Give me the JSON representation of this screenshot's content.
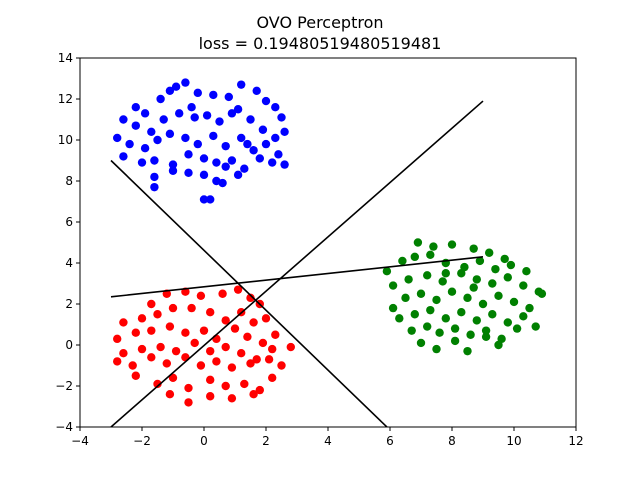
{
  "chart_data": {
    "type": "scatter",
    "title": "OVO Perceptron",
    "subtitle": "loss = 0.19480519480519481",
    "xlabel": "",
    "ylabel": "",
    "xlim": [
      -4,
      12
    ],
    "ylim": [
      -4,
      14
    ],
    "xticks": [
      "−4",
      "−2",
      "0",
      "2",
      "4",
      "6",
      "8",
      "10",
      "12"
    ],
    "yticks": [
      "−4",
      "−2",
      "0",
      "2",
      "4",
      "6",
      "8",
      "10",
      "12",
      "14"
    ],
    "grid": false,
    "series": [
      {
        "color": "#0000ff",
        "points": [
          [
            -2.2,
            11.6
          ],
          [
            -1.9,
            11.3
          ],
          [
            -1.4,
            12.0
          ],
          [
            -1.1,
            12.4
          ],
          [
            -0.9,
            12.6
          ],
          [
            -0.6,
            12.8
          ],
          [
            -0.2,
            12.3
          ],
          [
            0.3,
            12.2
          ],
          [
            0.8,
            12.1
          ],
          [
            1.2,
            12.7
          ],
          [
            1.7,
            12.4
          ],
          [
            2.0,
            11.9
          ],
          [
            2.3,
            11.6
          ],
          [
            2.5,
            11.1
          ],
          [
            -2.6,
            11.0
          ],
          [
            -2.2,
            10.7
          ],
          [
            -1.7,
            10.4
          ],
          [
            -1.3,
            11.0
          ],
          [
            -0.8,
            11.3
          ],
          [
            -0.4,
            11.6
          ],
          [
            0.1,
            11.2
          ],
          [
            0.5,
            10.9
          ],
          [
            1.1,
            11.5
          ],
          [
            1.5,
            11.0
          ],
          [
            1.9,
            10.5
          ],
          [
            2.3,
            10.1
          ],
          [
            2.6,
            10.4
          ],
          [
            -2.8,
            10.1
          ],
          [
            -2.4,
            9.8
          ],
          [
            -1.9,
            9.6
          ],
          [
            -1.5,
            10.0
          ],
          [
            -1.1,
            10.3
          ],
          [
            -0.6,
            10.1
          ],
          [
            -0.2,
            9.8
          ],
          [
            0.3,
            10.2
          ],
          [
            0.7,
            9.7
          ],
          [
            1.2,
            10.1
          ],
          [
            1.6,
            9.5
          ],
          [
            2.0,
            9.8
          ],
          [
            2.4,
            9.3
          ],
          [
            -2.6,
            9.2
          ],
          [
            -2.0,
            8.9
          ],
          [
            -1.6,
            9.0
          ],
          [
            -1.0,
            8.8
          ],
          [
            -0.5,
            9.3
          ],
          [
            0.0,
            9.1
          ],
          [
            0.4,
            8.9
          ],
          [
            0.9,
            9.0
          ],
          [
            1.3,
            8.6
          ],
          [
            1.8,
            9.1
          ],
          [
            2.2,
            8.9
          ],
          [
            2.6,
            8.8
          ],
          [
            -1.6,
            8.2
          ],
          [
            -1.0,
            8.5
          ],
          [
            -0.5,
            8.4
          ],
          [
            0.0,
            8.3
          ],
          [
            0.4,
            8.0
          ],
          [
            0.7,
            8.7
          ],
          [
            1.1,
            8.3
          ],
          [
            -1.6,
            7.7
          ],
          [
            0.0,
            7.1
          ],
          [
            0.2,
            7.1
          ],
          [
            0.6,
            7.9
          ],
          [
            -0.3,
            11.1
          ],
          [
            0.9,
            11.3
          ],
          [
            1.4,
            9.8
          ]
        ]
      },
      {
        "color": "#ff0000",
        "points": [
          [
            -1.7,
            2.0
          ],
          [
            -1.2,
            2.5
          ],
          [
            -0.6,
            2.6
          ],
          [
            -0.1,
            2.4
          ],
          [
            0.6,
            2.5
          ],
          [
            1.1,
            2.7
          ],
          [
            1.5,
            2.3
          ],
          [
            1.8,
            2.0
          ],
          [
            -2.6,
            1.1
          ],
          [
            -2.0,
            1.3
          ],
          [
            -1.5,
            1.5
          ],
          [
            -1.0,
            1.8
          ],
          [
            -0.4,
            1.8
          ],
          [
            0.2,
            1.6
          ],
          [
            0.7,
            1.2
          ],
          [
            1.2,
            1.6
          ],
          [
            1.6,
            1.1
          ],
          [
            2.0,
            1.3
          ],
          [
            -2.8,
            0.3
          ],
          [
            -2.2,
            0.6
          ],
          [
            -1.7,
            0.7
          ],
          [
            -1.1,
            0.9
          ],
          [
            -0.6,
            0.6
          ],
          [
            0.0,
            0.7
          ],
          [
            0.4,
            0.3
          ],
          [
            1.0,
            0.8
          ],
          [
            1.4,
            0.4
          ],
          [
            1.9,
            0.1
          ],
          [
            2.3,
            0.5
          ],
          [
            -2.6,
            -0.4
          ],
          [
            -2.0,
            -0.2
          ],
          [
            -1.4,
            -0.1
          ],
          [
            -0.9,
            -0.3
          ],
          [
            -0.3,
            0.1
          ],
          [
            0.2,
            -0.3
          ],
          [
            0.7,
            -0.1
          ],
          [
            1.2,
            -0.4
          ],
          [
            1.7,
            -0.7
          ],
          [
            2.2,
            -0.2
          ],
          [
            2.8,
            -0.1
          ],
          [
            -2.8,
            -0.8
          ],
          [
            -2.3,
            -1.0
          ],
          [
            -1.7,
            -0.6
          ],
          [
            -1.2,
            -0.9
          ],
          [
            -0.6,
            -0.6
          ],
          [
            -0.1,
            -1.0
          ],
          [
            0.4,
            -0.8
          ],
          [
            0.9,
            -1.1
          ],
          [
            1.5,
            -0.9
          ],
          [
            2.1,
            -0.7
          ],
          [
            2.5,
            -1.0
          ],
          [
            -2.2,
            -1.5
          ],
          [
            -1.5,
            -1.9
          ],
          [
            -1.0,
            -1.6
          ],
          [
            -0.5,
            -2.1
          ],
          [
            0.2,
            -1.7
          ],
          [
            0.7,
            -2.0
          ],
          [
            1.3,
            -1.9
          ],
          [
            1.8,
            -2.2
          ],
          [
            2.2,
            -1.6
          ],
          [
            -1.1,
            -2.4
          ],
          [
            -0.5,
            -2.8
          ],
          [
            0.2,
            -2.5
          ],
          [
            0.9,
            -2.6
          ],
          [
            1.6,
            -2.4
          ]
        ]
      },
      {
        "color": "#008000",
        "points": [
          [
            6.9,
            5.0
          ],
          [
            7.4,
            4.8
          ],
          [
            8.0,
            4.9
          ],
          [
            8.7,
            4.7
          ],
          [
            9.2,
            4.5
          ],
          [
            9.7,
            4.2
          ],
          [
            5.9,
            3.6
          ],
          [
            6.4,
            4.1
          ],
          [
            6.8,
            4.3
          ],
          [
            7.3,
            4.4
          ],
          [
            7.8,
            4.0
          ],
          [
            8.4,
            3.8
          ],
          [
            8.9,
            4.1
          ],
          [
            9.4,
            3.7
          ],
          [
            9.9,
            3.9
          ],
          [
            10.4,
            3.6
          ],
          [
            6.1,
            2.9
          ],
          [
            6.6,
            3.2
          ],
          [
            7.2,
            3.4
          ],
          [
            7.7,
            3.1
          ],
          [
            8.3,
            3.5
          ],
          [
            8.8,
            3.2
          ],
          [
            9.3,
            3.0
          ],
          [
            9.8,
            3.3
          ],
          [
            10.3,
            2.9
          ],
          [
            10.8,
            2.6
          ],
          [
            6.1,
            1.8
          ],
          [
            6.5,
            2.3
          ],
          [
            7.0,
            2.5
          ],
          [
            7.5,
            2.2
          ],
          [
            8.0,
            2.6
          ],
          [
            8.5,
            2.3
          ],
          [
            9.0,
            2.0
          ],
          [
            9.5,
            2.4
          ],
          [
            10.0,
            2.1
          ],
          [
            10.5,
            1.8
          ],
          [
            10.9,
            2.5
          ],
          [
            6.3,
            1.3
          ],
          [
            6.8,
            1.5
          ],
          [
            7.3,
            1.7
          ],
          [
            7.8,
            1.3
          ],
          [
            8.3,
            1.6
          ],
          [
            8.8,
            1.2
          ],
          [
            9.3,
            1.5
          ],
          [
            9.8,
            1.1
          ],
          [
            10.3,
            1.4
          ],
          [
            10.7,
            0.9
          ],
          [
            6.7,
            0.7
          ],
          [
            7.2,
            0.9
          ],
          [
            7.6,
            0.6
          ],
          [
            8.1,
            0.8
          ],
          [
            8.6,
            0.5
          ],
          [
            9.1,
            0.7
          ],
          [
            9.6,
            0.3
          ],
          [
            10.1,
            0.8
          ],
          [
            7.0,
            0.1
          ],
          [
            7.5,
            -0.2
          ],
          [
            8.1,
            0.2
          ],
          [
            8.5,
            -0.3
          ],
          [
            9.1,
            0.4
          ],
          [
            9.5,
            0.0
          ],
          [
            7.8,
            3.5
          ],
          [
            8.7,
            2.8
          ]
        ]
      }
    ],
    "lines": [
      {
        "color": "#000000",
        "points": [
          [
            -3,
            9.0
          ],
          [
            5.9,
            -4.0
          ]
        ]
      },
      {
        "color": "#000000",
        "points": [
          [
            -3,
            -4.0
          ],
          [
            9.0,
            11.9
          ]
        ]
      },
      {
        "color": "#000000",
        "points": [
          [
            -3,
            2.35
          ],
          [
            9.0,
            4.3
          ]
        ]
      }
    ]
  }
}
